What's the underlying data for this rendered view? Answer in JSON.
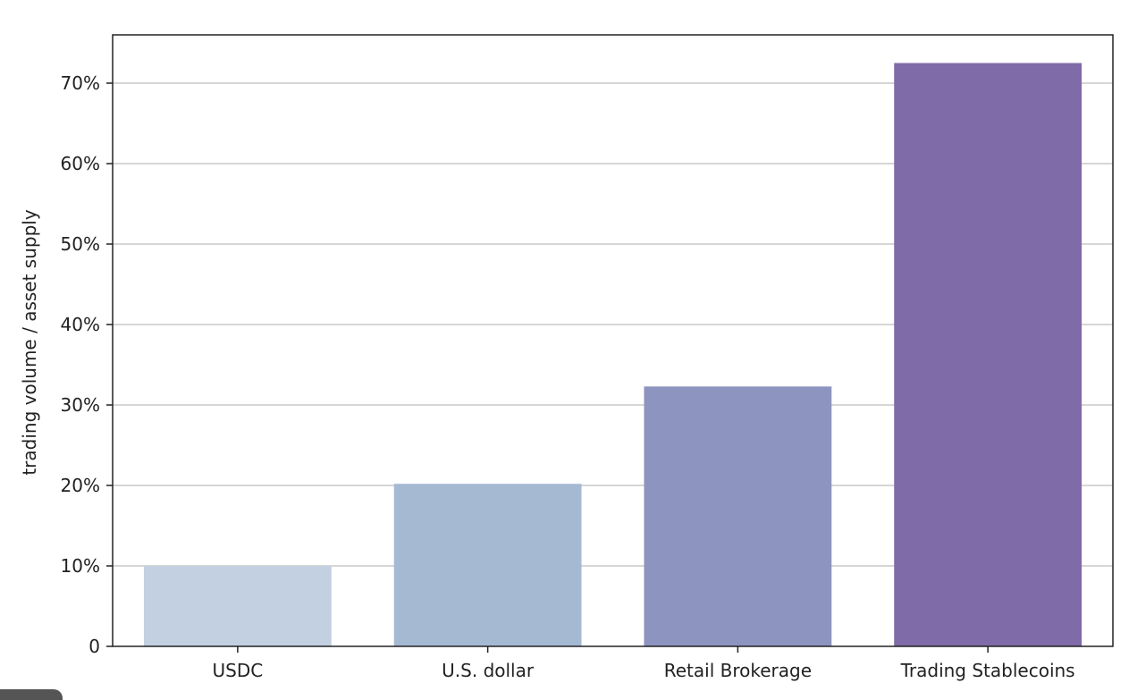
{
  "chart_data": {
    "type": "bar",
    "title": "",
    "xlabel": "",
    "ylabel": "trading volume / asset supply",
    "categories": [
      "USDC",
      "U.S. dollar",
      "Retail Brokerage",
      "Trading Stablecoins"
    ],
    "values": [
      10,
      20.2,
      32.3,
      72.5
    ],
    "value_unit": "%",
    "colors": [
      "#c2d0e1",
      "#a6b9d3",
      "#8d94c0",
      "#7f6ba7"
    ],
    "ylim": [
      0,
      76
    ],
    "yticks": [
      0,
      10,
      20,
      30,
      40,
      50,
      60,
      70
    ],
    "ytick_labels": [
      "0",
      "10%",
      "20%",
      "30%",
      "40%",
      "50%",
      "60%",
      "70%"
    ],
    "grid": "horizontal",
    "legend": "none"
  }
}
